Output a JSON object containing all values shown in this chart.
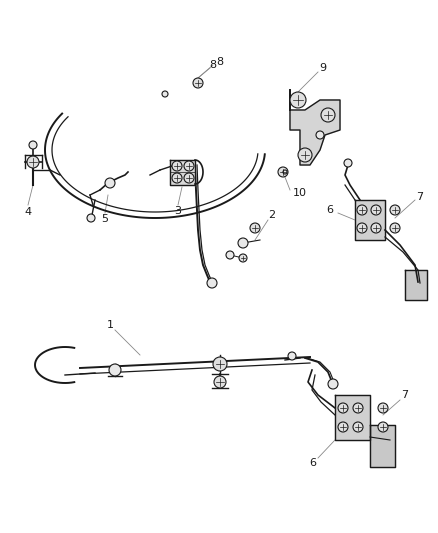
{
  "bg_color": "#ffffff",
  "fig_width": 4.38,
  "fig_height": 5.33,
  "dpi": 100,
  "line_color": "#1a1a1a",
  "leader_color": "#888888",
  "label_color": "#1a1a1a",
  "label_fontsize": 8.0
}
